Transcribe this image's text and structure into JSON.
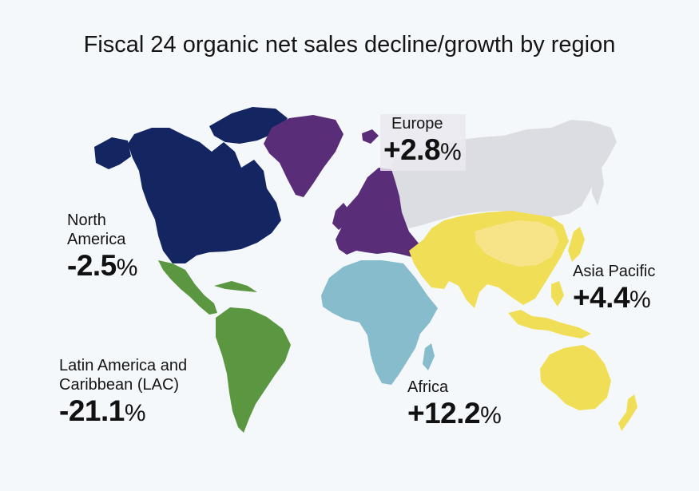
{
  "title": "Fiscal 24 organic net sales decline/growth by region",
  "colors": {
    "background": "#f4f8fb",
    "north_america": "#142661",
    "europe": "#5a2d78",
    "latin_america": "#5b9640",
    "africa": "#86bccb",
    "asia_pacific": "#f0df56",
    "china_highlight": "#f7e388",
    "russia_neutral": "#dcdde2"
  },
  "regions": {
    "north_america": {
      "name_line1": "North",
      "name_line2": "America",
      "value": "-2.5",
      "unit": "%"
    },
    "europe": {
      "name": "Europe",
      "value": "+2.8",
      "unit": "%"
    },
    "asia_pacific": {
      "name": "Asia Pacific",
      "value": "+4.4",
      "unit": "%"
    },
    "latin_america": {
      "name_line1": "Latin America and",
      "name_line2": "Caribbean (LAC)",
      "value": "-21.1",
      "unit": "%"
    },
    "africa": {
      "name": "Africa",
      "value": "+12.2",
      "unit": "%"
    }
  }
}
